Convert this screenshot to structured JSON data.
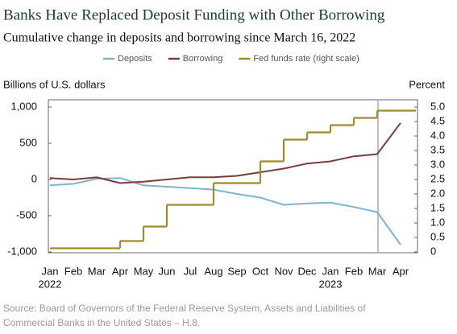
{
  "chart_data": {
    "type": "line",
    "title": "Banks Have Replaced Deposit Funding with Other Borrowing",
    "subtitle": "Cumulative change in deposits and borrowing since March 16, 2022",
    "y_label": "Billions of U.S. dollars",
    "y2_label": "Percent",
    "source": "Source: Board of Governors of the Federal Reserve System, Assets and Liabilities of Commercial Banks in the United States – H.8.",
    "categories": [
      "Jan",
      "Feb",
      "Mar",
      "Apr",
      "May",
      "Jun",
      "Jul",
      "Aug",
      "Sep",
      "Oct",
      "Nov",
      "Dec",
      "Jan",
      "Feb",
      "Mar",
      "Apr"
    ],
    "year_labels": [
      "2022",
      null,
      null,
      null,
      null,
      null,
      null,
      null,
      null,
      null,
      null,
      null,
      "2023",
      null,
      null,
      null
    ],
    "ylim": [
      -1000,
      1000
    ],
    "yticks": [
      {
        "value": -1000,
        "label": "-1,000"
      },
      -500,
      0,
      500,
      {
        "value": 1000,
        "label": "1,000"
      }
    ],
    "y2lim": [
      0,
      5
    ],
    "y2ticks": [
      0,
      0.5,
      {
        "value": 1,
        "label": "1.0"
      },
      1.5,
      {
        "value": 2,
        "label": "2.0"
      },
      2.5,
      {
        "value": 3,
        "label": "3.0"
      },
      3.5,
      {
        "value": 4,
        "label": "4.0"
      },
      4.5,
      {
        "value": 5,
        "label": "5.0"
      }
    ],
    "series": [
      {
        "name": "Deposits",
        "color": "#7fb4c9",
        "values": [
          -80,
          -60,
          10,
          20,
          -80,
          -100,
          -120,
          -140,
          -200,
          -250,
          -350,
          -330,
          -320,
          -380,
          -450,
          -900
        ]
      },
      {
        "name": "Borrowing",
        "color": "#7a3c3c",
        "values": [
          20,
          0,
          30,
          -50,
          -30,
          0,
          30,
          30,
          50,
          100,
          150,
          220,
          250,
          320,
          350,
          780
        ]
      },
      {
        "name": "Fed funds rate (right scale)",
        "color": "#a08a2a",
        "axis": "y2",
        "step": true,
        "values": [
          0.125,
          0.125,
          0.125,
          0.375,
          0.875,
          1.625,
          1.625,
          2.375,
          2.375,
          3.125,
          3.875,
          4.125,
          4.375,
          4.625,
          4.875,
          4.875
        ]
      }
    ]
  }
}
